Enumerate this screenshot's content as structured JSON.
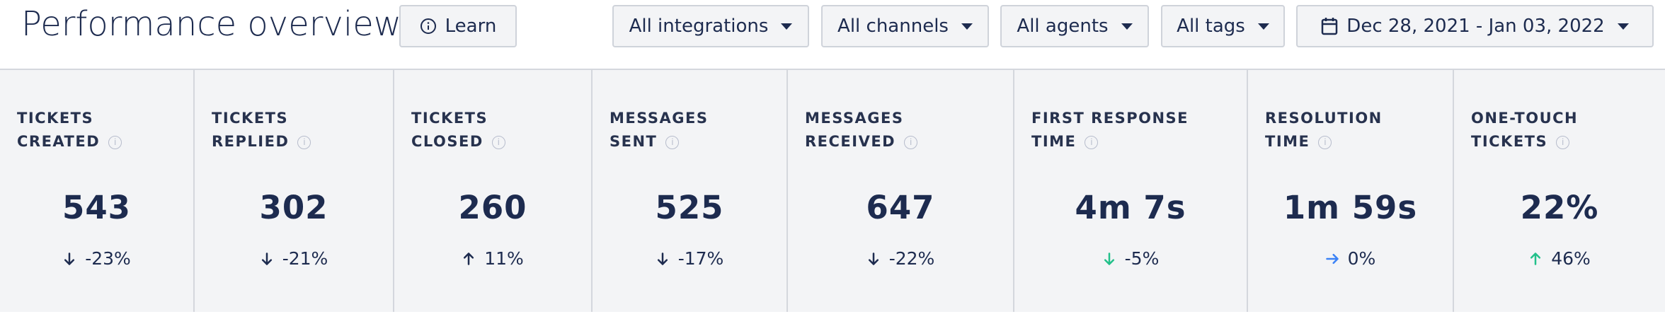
{
  "header": {
    "title": "Performance overview",
    "learn_button": "Learn",
    "filters": [
      "All integrations",
      "All channels",
      "All agents",
      "All tags"
    ],
    "date_range": "Dec 28, 2021 - Jan 03, 2022"
  },
  "stats": [
    {
      "label_lines": [
        "TICKETS",
        "CREATED"
      ],
      "value": "543",
      "change": "-23%",
      "direction": "down",
      "color": "#1d2b4f"
    },
    {
      "label_lines": [
        "TICKETS",
        "REPLIED"
      ],
      "value": "302",
      "change": "-21%",
      "direction": "down",
      "color": "#1d2b4f"
    },
    {
      "label_lines": [
        "TICKETS",
        "CLOSED"
      ],
      "value": "260",
      "change": "11%",
      "direction": "up",
      "color": "#1d2b4f"
    },
    {
      "label_lines": [
        "MESSAGES",
        "SENT"
      ],
      "value": "525",
      "change": "-17%",
      "direction": "down",
      "color": "#1d2b4f"
    },
    {
      "label_lines": [
        "MESSAGES",
        "RECEIVED"
      ],
      "value": "647",
      "change": "-22%",
      "direction": "down",
      "color": "#1d2b4f"
    },
    {
      "label_lines": [
        "FIRST RESPONSE",
        "TIME"
      ],
      "value": "4m 7s",
      "change": "-5%",
      "direction": "down",
      "color": "#22c08a"
    },
    {
      "label_lines": [
        "RESOLUTION",
        "TIME"
      ],
      "value": "1m 59s",
      "change": "0%",
      "direction": "right",
      "color": "#3b82f6"
    },
    {
      "label_lines": [
        "ONE-TOUCH",
        "TICKETS"
      ],
      "value": "22%",
      "change": "46%",
      "direction": "up",
      "color": "#22c08a"
    }
  ]
}
